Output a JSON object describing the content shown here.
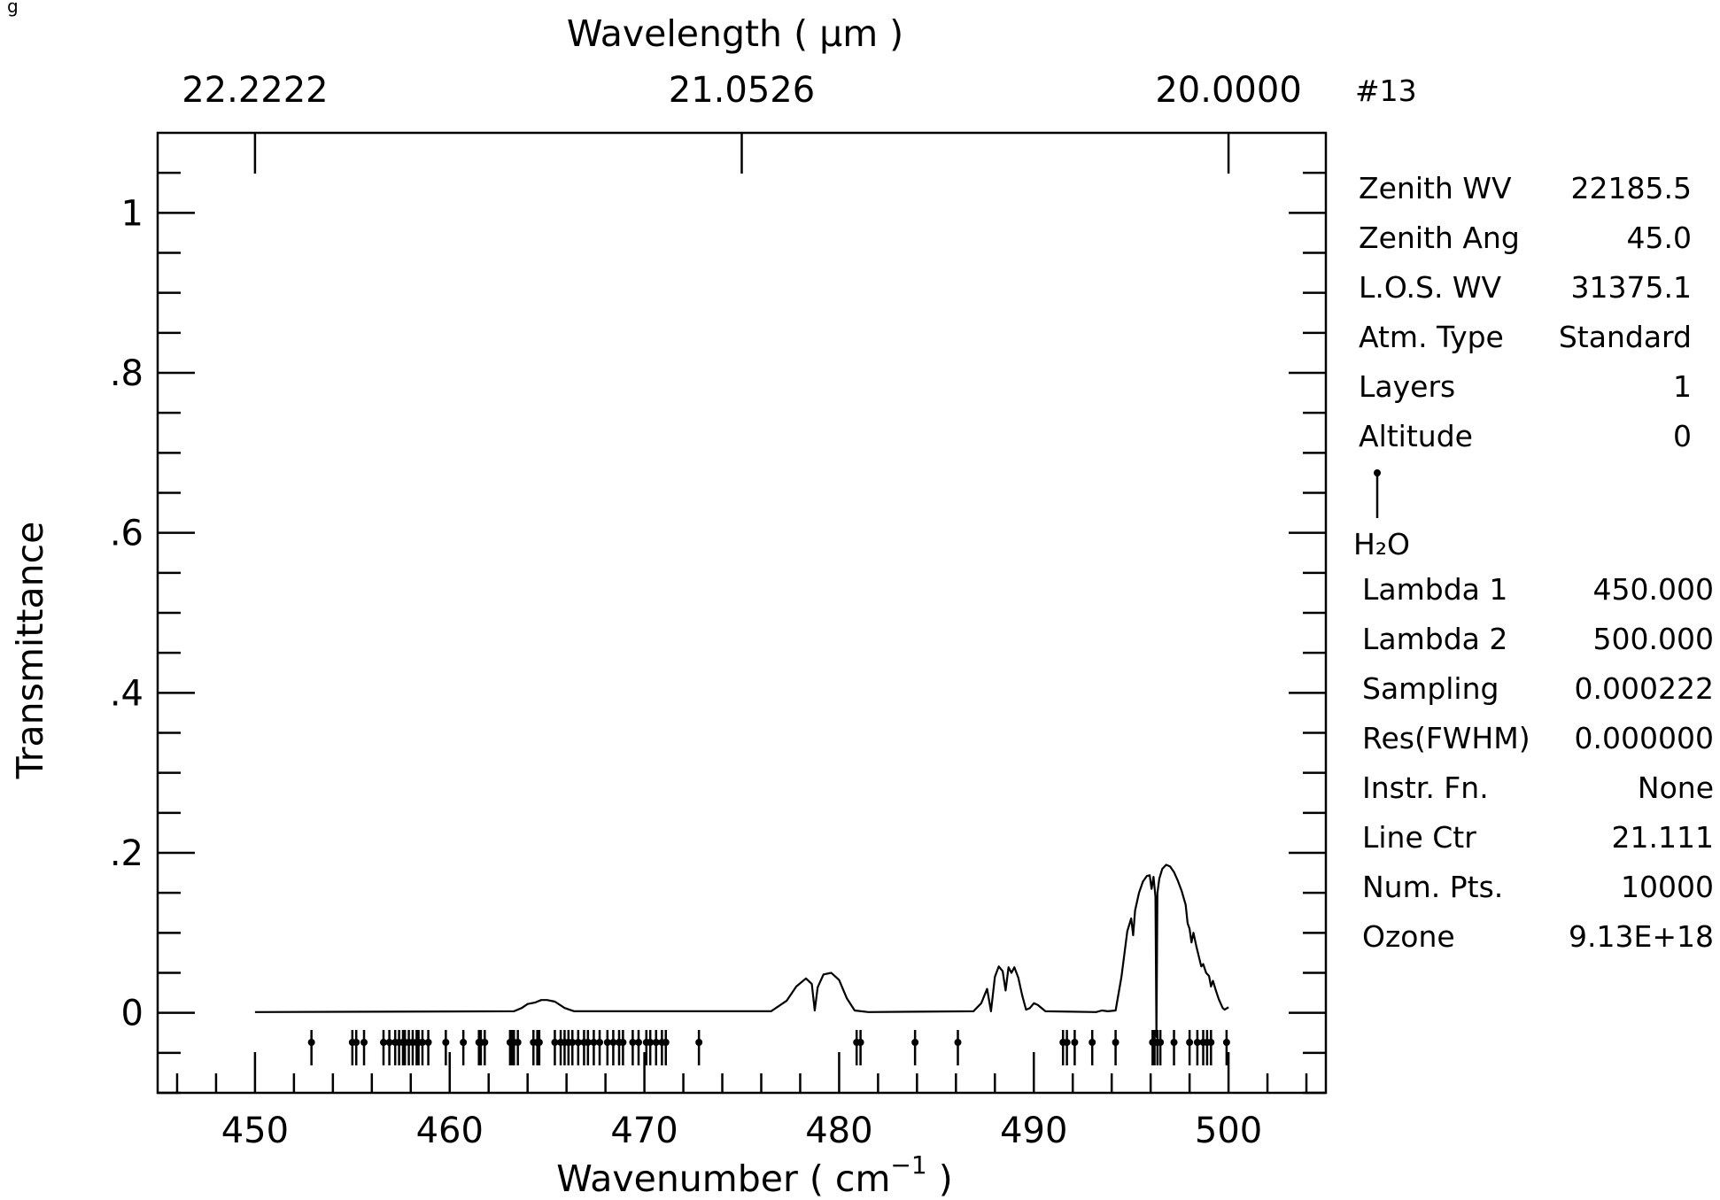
{
  "edge_glyph": "g",
  "chart_data": {
    "type": "line",
    "title": "",
    "xlabel": "Wavenumber ( cm",
    "xlabel_superscript": "−1",
    "xlabel_close": " )",
    "ylabel": "Transmittance",
    "top_xlabel": "Wavelength ( μm )",
    "x_range": [
      445,
      505
    ],
    "y_range": [
      -0.1,
      1.1
    ],
    "x_ticks": [
      450,
      460,
      470,
      480,
      490,
      500
    ],
    "x_tick_labels": [
      "450",
      "460",
      "470",
      "480",
      "490",
      "500"
    ],
    "y_ticks": [
      0,
      0.2,
      0.4,
      0.6,
      0.8,
      1.0
    ],
    "y_tick_labels": [
      "0",
      ".2",
      ".4",
      ".6",
      ".8",
      "1"
    ],
    "top_ticks": [
      450,
      475,
      500
    ],
    "top_tick_labels": [
      "22.2222",
      "21.0526",
      "20.0000"
    ],
    "grid": false,
    "series": [
      {
        "values": [
          [
            450,
            0.001
          ],
          [
            463.3,
            0.002
          ],
          [
            463.7,
            0.006
          ],
          [
            464.0,
            0.011
          ],
          [
            464.4,
            0.013
          ],
          [
            464.7,
            0.016
          ],
          [
            465.0,
            0.016
          ],
          [
            465.4,
            0.014
          ],
          [
            465.9,
            0.006
          ],
          [
            466.4,
            0.002
          ],
          [
            476.5,
            0.002
          ],
          [
            477.3,
            0.015
          ],
          [
            477.8,
            0.033
          ],
          [
            478.3,
            0.043
          ],
          [
            478.6,
            0.036
          ],
          [
            478.75,
            0.003
          ],
          [
            478.9,
            0.032
          ],
          [
            479.2,
            0.048
          ],
          [
            479.6,
            0.05
          ],
          [
            480.0,
            0.041
          ],
          [
            480.4,
            0.018
          ],
          [
            480.8,
            0.003
          ],
          [
            481.5,
            0.001
          ],
          [
            486.9,
            0.002
          ],
          [
            487.3,
            0.012
          ],
          [
            487.6,
            0.03
          ],
          [
            487.8,
            0.002
          ],
          [
            488.0,
            0.045
          ],
          [
            488.2,
            0.058
          ],
          [
            488.4,
            0.052
          ],
          [
            488.55,
            0.028
          ],
          [
            488.7,
            0.057
          ],
          [
            488.85,
            0.05
          ],
          [
            489.0,
            0.057
          ],
          [
            489.2,
            0.044
          ],
          [
            489.4,
            0.022
          ],
          [
            489.6,
            0.004
          ],
          [
            489.8,
            0.006
          ],
          [
            490.0,
            0.012
          ],
          [
            490.2,
            0.01
          ],
          [
            490.6,
            0.002
          ],
          [
            493.2,
            0.001
          ],
          [
            493.5,
            0.003
          ],
          [
            493.8,
            0.002
          ],
          [
            494.2,
            0.003
          ],
          [
            494.5,
            0.045
          ],
          [
            494.8,
            0.102
          ],
          [
            495.0,
            0.118
          ],
          [
            495.1,
            0.097
          ],
          [
            495.2,
            0.128
          ],
          [
            495.4,
            0.15
          ],
          [
            495.6,
            0.164
          ],
          [
            495.8,
            0.171
          ],
          [
            495.95,
            0.172
          ],
          [
            496.05,
            0.155
          ],
          [
            496.15,
            0.17
          ],
          [
            496.25,
            0.145
          ],
          [
            496.3,
            -0.03
          ],
          [
            496.35,
            0.15
          ],
          [
            496.45,
            0.168
          ],
          [
            496.6,
            0.18
          ],
          [
            496.8,
            0.185
          ],
          [
            497.0,
            0.183
          ],
          [
            497.2,
            0.176
          ],
          [
            497.4,
            0.165
          ],
          [
            497.6,
            0.152
          ],
          [
            497.8,
            0.135
          ],
          [
            497.9,
            0.112
          ],
          [
            498.0,
            0.105
          ],
          [
            498.1,
            0.088
          ],
          [
            498.2,
            0.1
          ],
          [
            498.35,
            0.083
          ],
          [
            498.5,
            0.068
          ],
          [
            498.6,
            0.058
          ],
          [
            498.7,
            0.061
          ],
          [
            498.85,
            0.05
          ],
          [
            499.0,
            0.046
          ],
          [
            499.1,
            0.033
          ],
          [
            499.2,
            0.04
          ],
          [
            499.35,
            0.028
          ],
          [
            499.5,
            0.017
          ],
          [
            499.7,
            0.006
          ],
          [
            499.8,
            0.004
          ],
          [
            500,
            0.007
          ]
        ]
      }
    ],
    "line_markers": [
      452.9,
      455.0,
      455.2,
      455.6,
      456.6,
      456.9,
      457.2,
      457.4,
      457.6,
      457.7,
      457.9,
      458.1,
      458.3,
      458.4,
      458.6,
      458.9,
      459.8,
      460.7,
      461.5,
      461.6,
      461.8,
      463.1,
      463.2,
      463.3,
      463.5,
      464.3,
      464.5,
      464.6,
      465.4,
      465.7,
      465.9,
      466.1,
      466.3,
      466.6,
      466.9,
      467.1,
      467.4,
      467.7,
      468.1,
      468.4,
      468.7,
      468.9,
      469.4,
      469.7,
      470.1,
      470.3,
      470.6,
      470.9,
      471.1,
      472.8,
      480.9,
      481.1,
      483.9,
      486.1,
      491.5,
      491.7,
      492.1,
      493.0,
      494.2,
      496.1,
      496.2,
      496.35,
      496.5,
      497.2,
      498.0,
      498.4,
      498.7,
      498.9,
      499.1,
      499.9
    ],
    "line_marker_label": "H₂O"
  },
  "info_panel": {
    "run_id": "#13",
    "rows_upper": [
      {
        "label": "Zenith WV",
        "value": "22185.5"
      },
      {
        "label": "Zenith Ang",
        "value": "45.0"
      },
      {
        "label": "L.O.S. WV",
        "value": "31375.1"
      },
      {
        "label": "Atm. Type",
        "value": "Standard"
      },
      {
        "label": "Layers",
        "value": "1"
      },
      {
        "label": "Altitude",
        "value": "0"
      }
    ],
    "molecule": "H₂O",
    "rows_lower": [
      {
        "label": "Lambda 1",
        "value": "450.000"
      },
      {
        "label": "Lambda 2",
        "value": "500.000"
      },
      {
        "label": "Sampling",
        "value": "0.000222"
      },
      {
        "label": "Res(FWHM)",
        "value": "0.000000"
      },
      {
        "label": "Instr. Fn.",
        "value": "None"
      },
      {
        "label": "Line Ctr",
        "value": "21.111"
      },
      {
        "label": "Num. Pts.",
        "value": "10000"
      },
      {
        "label": "Ozone",
        "value": "9.13E+18"
      }
    ]
  }
}
